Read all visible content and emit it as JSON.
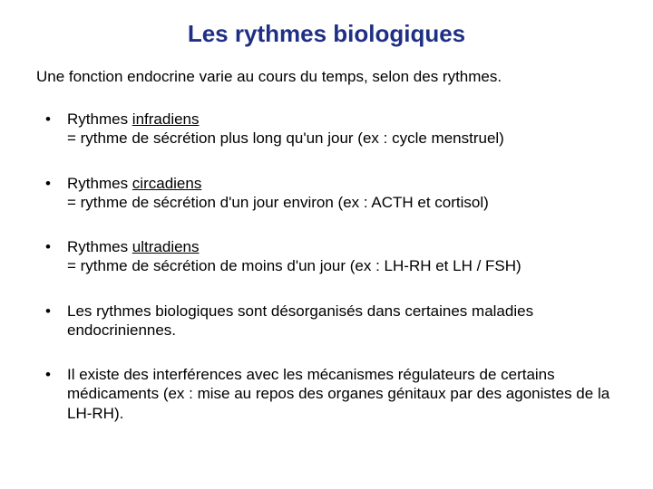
{
  "colors": {
    "title": "#1f2f85",
    "body": "#000000",
    "background": "#ffffff"
  },
  "typography": {
    "title_fontsize": 26,
    "title_weight": "bold",
    "body_fontsize": 17,
    "font_family": "Arial"
  },
  "title": "Les rythmes biologiques",
  "intro": "Une fonction endocrine varie au cours du temps, selon des rythmes.",
  "items": [
    {
      "prefix1": "Rythmes ",
      "term": "infradiens",
      "line2": "= rythme de sécrétion plus long qu'un jour (ex : cycle menstruel)"
    },
    {
      "prefix1": "Rythmes ",
      "term": "circadiens",
      "line2": "= rythme de sécrétion d'un jour environ (ex : ACTH et cortisol)"
    },
    {
      "prefix1": "Rythmes ",
      "term": "ultradiens",
      "line2": "= rythme de sécrétion de moins d'un jour (ex : LH-RH et LH / FSH)"
    },
    {
      "full": "Les rythmes biologiques sont désorganisés dans certaines maladies endocriniennes."
    },
    {
      "full": "Il existe des interférences avec les mécanismes régulateurs de certains médicaments (ex : mise au repos des organes génitaux par des agonistes de la LH-RH)."
    }
  ]
}
